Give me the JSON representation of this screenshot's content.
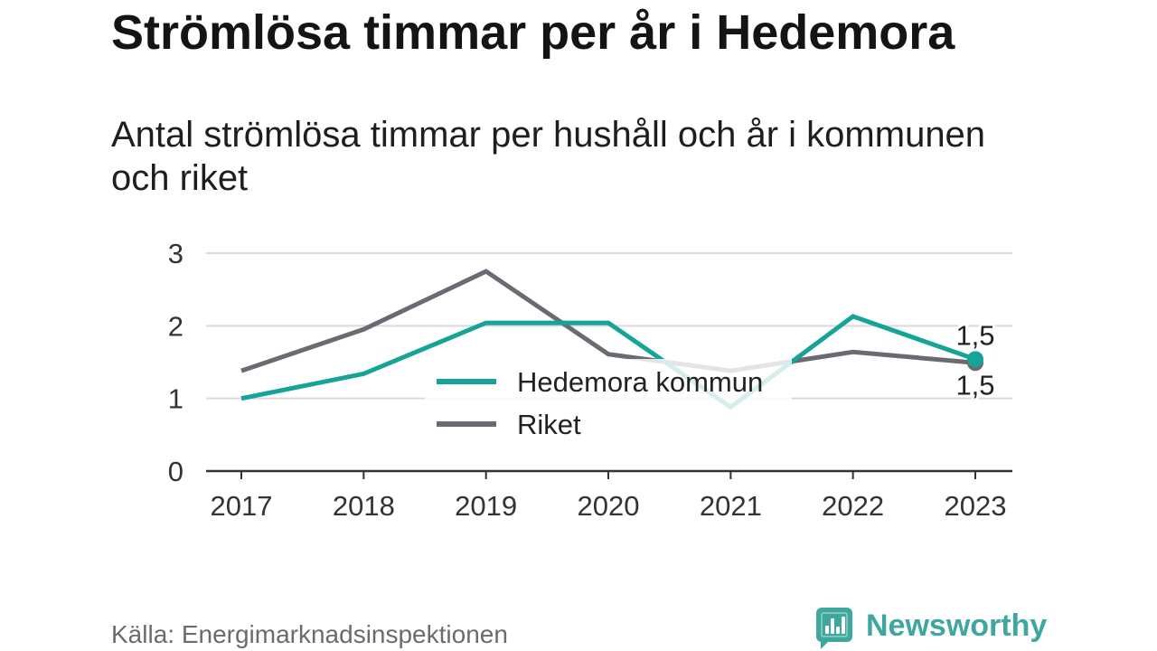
{
  "chart_data": {
    "type": "line",
    "title": "Strömlösa timmar per år i Hedemora",
    "subtitle": "Antal strömlösa timmar per hushåll och år i kommunen och riket",
    "source": "Källa: Energimarknadsinspektionen",
    "x": [
      2017,
      2018,
      2019,
      2020,
      2021,
      2022,
      2023
    ],
    "ylim": [
      0,
      3
    ],
    "y_ticks": [
      0,
      1,
      2,
      3
    ],
    "grid": true,
    "legend_placement": "center",
    "series": [
      {
        "name": "Hedemora kommun",
        "color": "#16a398",
        "values": [
          1.0,
          1.34,
          2.04,
          2.04,
          0.88,
          2.13,
          1.54
        ],
        "end_label": "1,5"
      },
      {
        "name": "Riket",
        "color": "#6b6a72",
        "values": [
          1.38,
          1.95,
          2.75,
          1.61,
          1.38,
          1.64,
          1.49
        ],
        "end_label": "1,5"
      }
    ]
  },
  "brand": {
    "name": "Newsworthy",
    "icon": "newsworthy-logo-icon",
    "color": "#3ea79e"
  }
}
